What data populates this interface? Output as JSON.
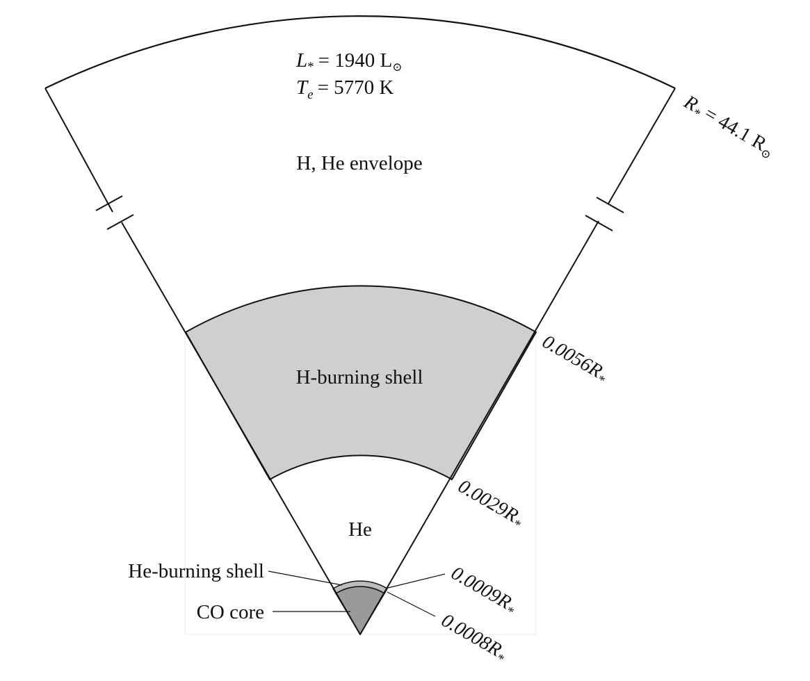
{
  "header": {
    "luminosity": {
      "symbol": "L",
      "sub": "*",
      "rhs": "= 1940 L",
      "sun": "⊙"
    },
    "temperature": {
      "symbol": "T",
      "sub": "e",
      "rhs": "= 5770 K"
    }
  },
  "regions": {
    "envelope": "H, He envelope",
    "h_shell": "H-burning shell",
    "he_zone": "He",
    "he_shell": "He-burning shell",
    "co_core": "CO core"
  },
  "radii": {
    "outer": {
      "prefix": "R",
      "sub": "*",
      "value": " = 44.1 R",
      "sun": "⊙"
    },
    "h_shell_outer": {
      "value": "0.0056",
      "symbol": "R",
      "sub": "*"
    },
    "h_shell_inner": {
      "value": "0.0029",
      "symbol": "R",
      "sub": "*"
    },
    "he_shell_outer": {
      "value": "0.0009",
      "symbol": "R",
      "sub": "*"
    },
    "co_core_outer": {
      "value": "0.0008",
      "symbol": "R",
      "sub": "*"
    }
  },
  "colors": {
    "h_shell_fill": "#cfcfcf",
    "he_shell_fill": "#bdbdbd",
    "co_core_fill": "#9a9a9a",
    "stroke": "#111111"
  }
}
